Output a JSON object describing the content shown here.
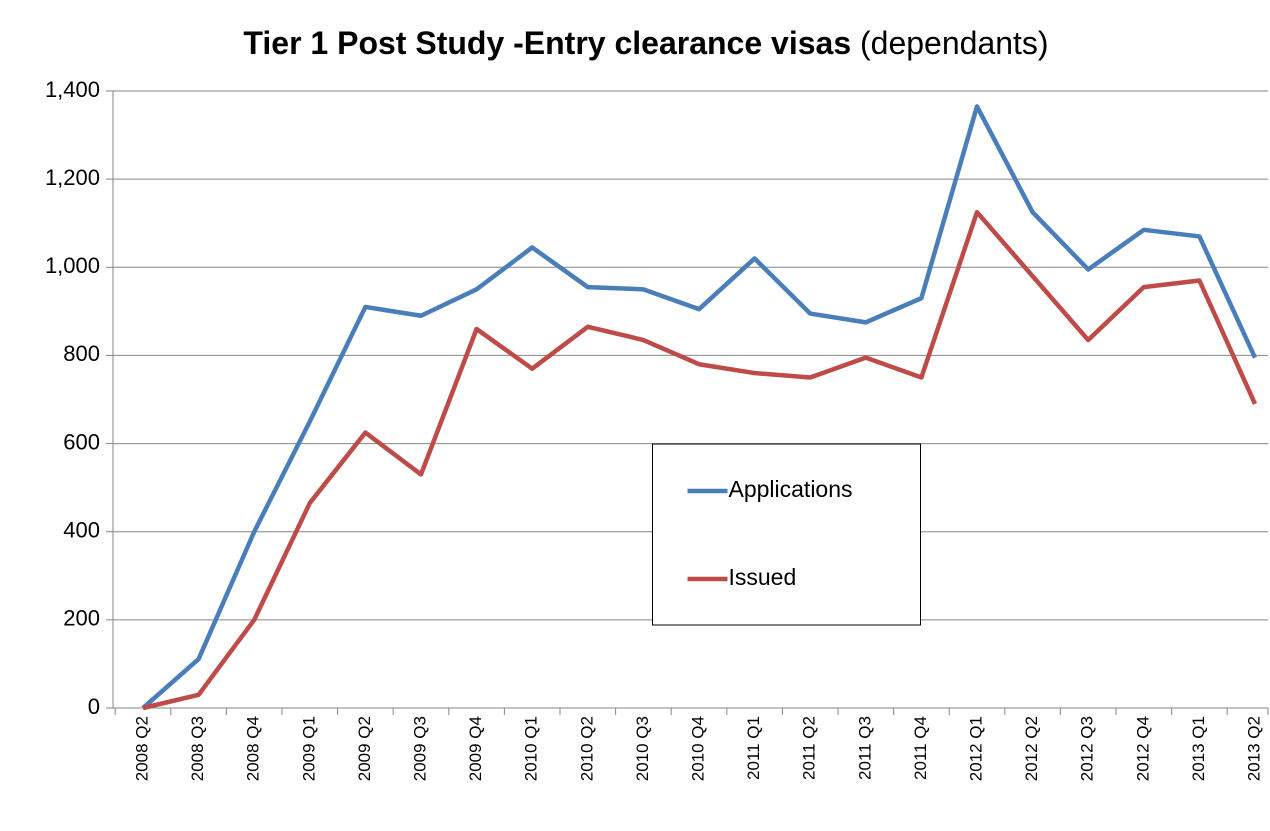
{
  "chart_data": {
    "type": "line",
    "title": "Tier 1 Post Study -Entry clearance visas",
    "subtitle": "(dependants)",
    "categories": [
      "2008 Q2",
      "2008 Q3",
      "2008 Q4",
      "2009 Q1",
      "2009 Q2",
      "2009 Q3",
      "2009 Q4",
      "2010 Q1",
      "2010 Q2",
      "2010 Q3",
      "2010 Q4",
      "2011 Q1",
      "2011 Q2",
      "2011 Q3",
      "2011 Q4",
      "2012 Q1",
      "2012 Q2",
      "2012 Q3",
      "2012 Q4",
      "2013 Q1",
      "2013 Q2"
    ],
    "series": [
      {
        "name": "Applications",
        "color": "#4a7ebb",
        "values": [
          0,
          111,
          400,
          650,
          910,
          890,
          950,
          1045,
          955,
          950,
          905,
          1020,
          895,
          875,
          930,
          1365,
          1125,
          995,
          1085,
          1070,
          795
        ]
      },
      {
        "name": "Issued",
        "color": "#be4b48",
        "values": [
          0,
          30,
          200,
          465,
          625,
          530,
          860,
          770,
          865,
          835,
          780,
          760,
          750,
          795,
          750,
          1125,
          980,
          835,
          955,
          970,
          690
        ]
      }
    ],
    "ylim": [
      0,
      1400
    ],
    "yticks": [
      0,
      200,
      400,
      600,
      800,
      {
        "value": 1000,
        "label": "1,000"
      },
      {
        "value": 1200,
        "label": "1,200"
      },
      {
        "value": 1400,
        "label": "1,400"
      }
    ],
    "grid": true,
    "legend": "center"
  }
}
